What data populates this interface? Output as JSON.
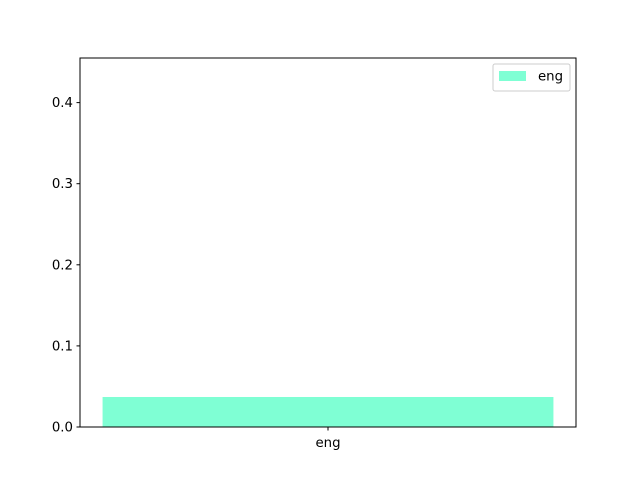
{
  "chart_data": {
    "type": "bar",
    "categories": [
      "eng"
    ],
    "series": [
      {
        "name": "eng",
        "values": [
          0.037
        ],
        "color": "#7fffd4"
      }
    ],
    "ylim": [
      0,
      0.455
    ],
    "yticks": [
      "0.0",
      "0.1",
      "0.2",
      "0.3",
      "0.4"
    ],
    "grid": false,
    "legend_position": "top-right"
  }
}
